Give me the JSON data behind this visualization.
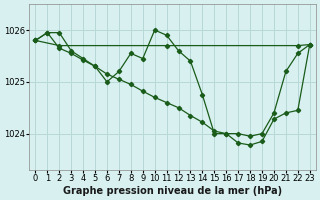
{
  "background_color": "#d8f0f0",
  "grid_color": "#b8d8d8",
  "line_color": "#1a5c1a",
  "marker_color": "#1a5c1a",
  "xlabel": "Graphe pression niveau de la mer (hPa)",
  "xlim": [
    -0.5,
    23.5
  ],
  "ylim": [
    1023.3,
    1026.5
  ],
  "yticks": [
    1024,
    1025,
    1026
  ],
  "xticks": [
    0,
    1,
    2,
    3,
    4,
    5,
    6,
    7,
    8,
    9,
    10,
    11,
    12,
    13,
    14,
    15,
    16,
    17,
    18,
    19,
    20,
    21,
    22,
    23
  ],
  "series_flat_x": [
    0,
    2,
    11,
    22,
    23
  ],
  "series_flat_y": [
    1025.8,
    1025.7,
    1025.7,
    1025.7,
    1025.72
  ],
  "series_wavy_x": [
    0,
    1,
    2,
    3,
    4,
    5,
    6,
    7,
    8,
    9,
    10,
    11,
    12,
    13,
    14,
    15,
    16,
    17,
    18,
    19,
    20,
    21,
    22,
    23
  ],
  "series_wavy_y": [
    1025.8,
    1025.95,
    1025.95,
    1025.6,
    1025.45,
    1025.3,
    1025.0,
    1025.2,
    1025.55,
    1025.45,
    1026.0,
    1025.9,
    1025.6,
    1025.4,
    1024.75,
    1024.0,
    1024.0,
    1024.0,
    1023.95,
    1024.0,
    1024.4,
    1025.2,
    1025.55,
    1025.72
  ],
  "series_diag_x": [
    0,
    1,
    2,
    3,
    4,
    5,
    6,
    7,
    8,
    9,
    10,
    11,
    12,
    13,
    14,
    15,
    16,
    17,
    18,
    19,
    20,
    21,
    22,
    23
  ],
  "series_diag_y": [
    1025.8,
    1025.95,
    1025.65,
    1025.55,
    1025.42,
    1025.3,
    1025.15,
    1025.05,
    1024.95,
    1024.82,
    1024.7,
    1024.6,
    1024.5,
    1024.35,
    1024.22,
    1024.05,
    1024.0,
    1023.82,
    1023.78,
    1023.85,
    1024.28,
    1024.4,
    1024.45,
    1025.72
  ],
  "xlabel_fontsize": 7,
  "tick_fontsize": 6
}
